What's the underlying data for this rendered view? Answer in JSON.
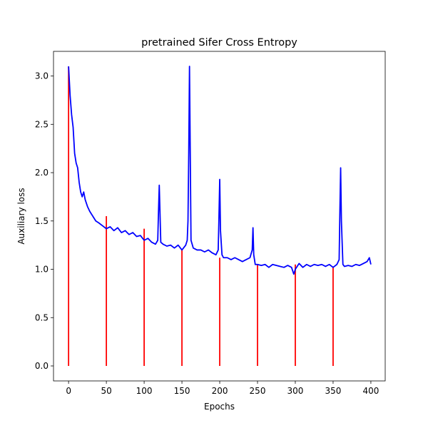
{
  "chart_data": {
    "type": "line",
    "title": "pretrained Sifer Cross Entropy",
    "xlabel": "Epochs",
    "ylabel": "Auxiliary loss",
    "xlim": [
      -19.95,
      418.95
    ],
    "ylim": [
      -0.155,
      3.255
    ],
    "xticks": [
      0,
      50,
      100,
      150,
      200,
      250,
      300,
      350,
      400
    ],
    "yticks": [
      0.0,
      0.5,
      1.0,
      1.5,
      2.0,
      2.5,
      3.0
    ],
    "xtick_labels": [
      "0",
      "50",
      "100",
      "150",
      "200",
      "250",
      "300",
      "350",
      "400"
    ],
    "ytick_labels": [
      "0.0",
      "0.5",
      "1.0",
      "1.5",
      "2.0",
      "2.5",
      "3.0"
    ],
    "grid": false,
    "series": [
      {
        "color": "#0000ff",
        "style": "line",
        "x": [
          0,
          2,
          4,
          6,
          8,
          10,
          12,
          14,
          16,
          18,
          20,
          22,
          25,
          28,
          32,
          36,
          40,
          45,
          50,
          55,
          60,
          65,
          70,
          75,
          80,
          85,
          90,
          95,
          100,
          105,
          110,
          115,
          118,
          119,
          120,
          122,
          125,
          130,
          135,
          140,
          145,
          150,
          155,
          157,
          158,
          159,
          160,
          161,
          162,
          165,
          170,
          175,
          180,
          185,
          190,
          195,
          198,
          199,
          200,
          201,
          203,
          205,
          210,
          215,
          220,
          225,
          230,
          235,
          240,
          243,
          244,
          245,
          247,
          250,
          255,
          260,
          265,
          270,
          275,
          280,
          285,
          290,
          295,
          298,
          300,
          305,
          310,
          315,
          320,
          325,
          330,
          335,
          340,
          345,
          350,
          355,
          358,
          359,
          360,
          361,
          363,
          365,
          370,
          375,
          380,
          385,
          390,
          395,
          398,
          400
        ],
        "y": [
          3.1,
          2.8,
          2.6,
          2.47,
          2.2,
          2.1,
          2.05,
          1.9,
          1.8,
          1.75,
          1.8,
          1.72,
          1.65,
          1.6,
          1.55,
          1.5,
          1.48,
          1.45,
          1.42,
          1.44,
          1.4,
          1.43,
          1.38,
          1.4,
          1.36,
          1.38,
          1.34,
          1.35,
          1.3,
          1.32,
          1.28,
          1.26,
          1.3,
          1.6,
          1.87,
          1.28,
          1.26,
          1.24,
          1.25,
          1.22,
          1.25,
          1.2,
          1.25,
          1.3,
          1.5,
          2.2,
          3.1,
          2.2,
          1.3,
          1.22,
          1.2,
          1.2,
          1.18,
          1.2,
          1.17,
          1.15,
          1.2,
          1.55,
          1.93,
          1.4,
          1.15,
          1.12,
          1.12,
          1.1,
          1.12,
          1.1,
          1.08,
          1.1,
          1.12,
          1.2,
          1.43,
          1.15,
          1.05,
          1.05,
          1.04,
          1.05,
          1.02,
          1.05,
          1.04,
          1.03,
          1.02,
          1.04,
          1.02,
          0.95,
          1.0,
          1.06,
          1.02,
          1.05,
          1.03,
          1.05,
          1.04,
          1.05,
          1.03,
          1.05,
          1.02,
          1.05,
          1.1,
          1.6,
          2.05,
          1.5,
          1.05,
          1.03,
          1.04,
          1.03,
          1.05,
          1.04,
          1.06,
          1.08,
          1.12,
          1.05
        ]
      },
      {
        "color": "#ff0000",
        "style": "vlines",
        "x": [
          0,
          50,
          100,
          150,
          200,
          250,
          300,
          350
        ],
        "y": [
          3.1,
          1.55,
          1.42,
          1.2,
          1.12,
          1.05,
          1.05,
          1.02
        ]
      }
    ]
  }
}
